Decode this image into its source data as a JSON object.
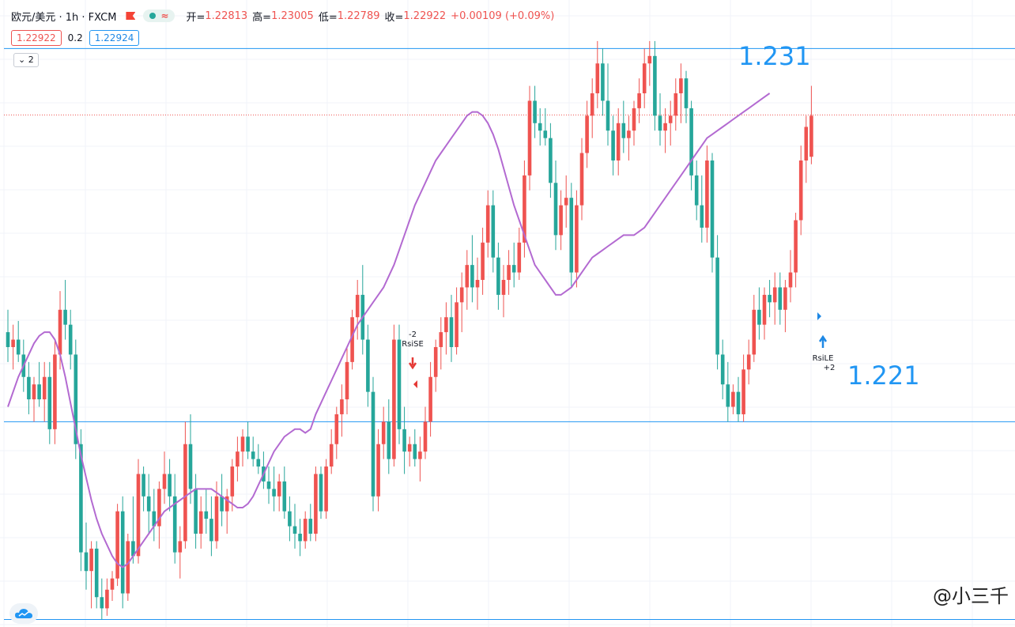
{
  "header": {
    "symbol": "欧元/美元 · 1h · FXCM",
    "open_label": "开=",
    "open": "1.22813",
    "high_label": "高=",
    "high": "1.23005",
    "low_label": "低=",
    "low": "1.22789",
    "close_label": "收=",
    "close": "1.22922",
    "change": "+0.00109 (+0.09%)"
  },
  "prices": {
    "bid": "1.22922",
    "spread": "0.2",
    "ask": "1.22924"
  },
  "collapse_label": "2",
  "levels": {
    "upper": "1.231",
    "lower": "1.221"
  },
  "signals": {
    "short": {
      "count": "-2",
      "name": "RsiSE"
    },
    "long": {
      "count": "+2",
      "name": "RsiLE"
    }
  },
  "watermark": "@小三千",
  "colors": {
    "up": "#ef5350",
    "down": "#26a69a",
    "ma": "#b36ad1",
    "level": "#2196f3"
  },
  "icons": {
    "logo": "tradingview-cloud-icon",
    "flag": "flag-icon",
    "arrow_up": "arrow-up-icon",
    "arrow_down": "arrow-down-icon"
  },
  "chart_data": {
    "type": "candlestick",
    "title": "欧元/美元 · 1h · FXCM",
    "ylim": [
      1.2155,
      1.2323
    ],
    "horizontal_lines": [
      1.231,
      1.221,
      1.2157
    ],
    "last_price_line": 1.22922,
    "series": [
      {
        "name": "OHLC",
        "ohlc": [
          [
            1.2234,
            1.224,
            1.2226,
            1.223
          ],
          [
            1.223,
            1.2236,
            1.2224,
            1.2232
          ],
          [
            1.2232,
            1.2237,
            1.2226,
            1.2228
          ],
          [
            1.2228,
            1.2232,
            1.2218,
            1.2222
          ],
          [
            1.2222,
            1.2226,
            1.2212,
            1.2216
          ],
          [
            1.2216,
            1.2222,
            1.221,
            1.222
          ],
          [
            1.222,
            1.2226,
            1.2214,
            1.2216
          ],
          [
            1.2216,
            1.2226,
            1.221,
            1.2222
          ],
          [
            1.2222,
            1.2226,
            1.2204,
            1.2208
          ],
          [
            1.2208,
            1.2232,
            1.2204,
            1.2228
          ],
          [
            1.2228,
            1.2245,
            1.2224,
            1.224
          ],
          [
            1.224,
            1.2248,
            1.2232,
            1.2236
          ],
          [
            1.2236,
            1.224,
            1.2224,
            1.2228
          ],
          [
            1.2228,
            1.2232,
            1.22,
            1.2204
          ],
          [
            1.2204,
            1.2208,
            1.217,
            1.2175
          ],
          [
            1.2175,
            1.2183,
            1.2165,
            1.217
          ],
          [
            1.217,
            1.2178,
            1.216,
            1.2176
          ],
          [
            1.2176,
            1.2178,
            1.216,
            1.2163
          ],
          [
            1.2163,
            1.2168,
            1.2157,
            1.216
          ],
          [
            1.216,
            1.2168,
            1.2158,
            1.2165
          ],
          [
            1.2165,
            1.217,
            1.2162,
            1.2168
          ],
          [
            1.2168,
            1.2188,
            1.2166,
            1.2186
          ],
          [
            1.2186,
            1.219,
            1.216,
            1.2164
          ],
          [
            1.2164,
            1.218,
            1.2162,
            1.2178
          ],
          [
            1.2178,
            1.219,
            1.2172,
            1.2174
          ],
          [
            1.2174,
            1.22,
            1.2172,
            1.2196
          ],
          [
            1.2196,
            1.2198,
            1.2186,
            1.219
          ],
          [
            1.219,
            1.2196,
            1.218,
            1.2186
          ],
          [
            1.2186,
            1.2192,
            1.2178,
            1.2182
          ],
          [
            1.2182,
            1.2194,
            1.2176,
            1.2192
          ],
          [
            1.2192,
            1.2202,
            1.2188,
            1.2196
          ],
          [
            1.2196,
            1.22,
            1.2186,
            1.219
          ],
          [
            1.219,
            1.2196,
            1.2172,
            1.2175
          ],
          [
            1.2175,
            1.2182,
            1.2168,
            1.2178
          ],
          [
            1.2178,
            1.221,
            1.2176,
            1.2204
          ],
          [
            1.2204,
            1.2212,
            1.2188,
            1.2192
          ],
          [
            1.2192,
            1.2196,
            1.2176,
            1.218
          ],
          [
            1.218,
            1.219,
            1.2176,
            1.2186
          ],
          [
            1.2186,
            1.2192,
            1.218,
            1.2184
          ],
          [
            1.2184,
            1.219,
            1.2174,
            1.2178
          ],
          [
            1.2178,
            1.2194,
            1.2176,
            1.219
          ],
          [
            1.219,
            1.2196,
            1.2182,
            1.2186
          ],
          [
            1.2186,
            1.2192,
            1.218,
            1.219
          ],
          [
            1.219,
            1.22,
            1.2186,
            1.2198
          ],
          [
            1.2198,
            1.2206,
            1.2194,
            1.2202
          ],
          [
            1.2202,
            1.2208,
            1.2198,
            1.2206
          ],
          [
            1.2206,
            1.221,
            1.22,
            1.2202
          ],
          [
            1.2202,
            1.2206,
            1.2198,
            1.22
          ],
          [
            1.22,
            1.2204,
            1.2196,
            1.2198
          ],
          [
            1.2198,
            1.2202,
            1.2192,
            1.2194
          ],
          [
            1.2194,
            1.2198,
            1.2188,
            1.2192
          ],
          [
            1.2192,
            1.2198,
            1.2186,
            1.219
          ],
          [
            1.219,
            1.2196,
            1.2186,
            1.2194
          ],
          [
            1.2194,
            1.2198,
            1.2184,
            1.2186
          ],
          [
            1.2186,
            1.219,
            1.2178,
            1.2182
          ],
          [
            1.2182,
            1.2188,
            1.2176,
            1.218
          ],
          [
            1.218,
            1.2184,
            1.2174,
            1.2178
          ],
          [
            1.2178,
            1.2186,
            1.2176,
            1.2184
          ],
          [
            1.2184,
            1.2188,
            1.2178,
            1.218
          ],
          [
            1.218,
            1.2198,
            1.2178,
            1.2196
          ],
          [
            1.2196,
            1.2198,
            1.2184,
            1.2186
          ],
          [
            1.2186,
            1.22,
            1.2184,
            1.2198
          ],
          [
            1.2198,
            1.2208,
            1.2196,
            1.2204
          ],
          [
            1.2204,
            1.2214,
            1.22,
            1.2212
          ],
          [
            1.2212,
            1.222,
            1.2206,
            1.2216
          ],
          [
            1.2216,
            1.223,
            1.2212,
            1.2226
          ],
          [
            1.2226,
            1.224,
            1.2224,
            1.2238
          ],
          [
            1.2238,
            1.2248,
            1.2232,
            1.2244
          ],
          [
            1.2244,
            1.2252,
            1.2228,
            1.2232
          ],
          [
            1.2232,
            1.2236,
            1.2214,
            1.2218
          ],
          [
            1.2218,
            1.2222,
            1.2186,
            1.219
          ],
          [
            1.219,
            1.2208,
            1.2186,
            1.2204
          ],
          [
            1.2204,
            1.2214,
            1.22,
            1.221
          ],
          [
            1.221,
            1.2216,
            1.2196,
            1.22
          ],
          [
            1.22,
            1.2236,
            1.2198,
            1.2232
          ],
          [
            1.2232,
            1.2236,
            1.2204,
            1.2208
          ],
          [
            1.2208,
            1.2214,
            1.2196,
            1.2202
          ],
          [
            1.2202,
            1.2206,
            1.2198,
            1.2204
          ],
          [
            1.2204,
            1.2208,
            1.2198,
            1.22
          ],
          [
            1.22,
            1.2206,
            1.2194,
            1.2202
          ],
          [
            1.2202,
            1.2214,
            1.22,
            1.221
          ],
          [
            1.221,
            1.2226,
            1.2206,
            1.2222
          ],
          [
            1.2222,
            1.2232,
            1.2218,
            1.223
          ],
          [
            1.223,
            1.2238,
            1.2224,
            1.2234
          ],
          [
            1.2234,
            1.2242,
            1.2228,
            1.2238
          ],
          [
            1.2238,
            1.2244,
            1.2226,
            1.223
          ],
          [
            1.223,
            1.2246,
            1.2228,
            1.2242
          ],
          [
            1.2242,
            1.225,
            1.2234,
            1.2246
          ],
          [
            1.2246,
            1.2256,
            1.224,
            1.2252
          ],
          [
            1.2252,
            1.226,
            1.2242,
            1.2246
          ],
          [
            1.2246,
            1.2254,
            1.224,
            1.2248
          ],
          [
            1.2248,
            1.2262,
            1.2244,
            1.2258
          ],
          [
            1.2258,
            1.2272,
            1.2254,
            1.2268
          ],
          [
            1.2268,
            1.2272,
            1.225,
            1.2254
          ],
          [
            1.2254,
            1.2258,
            1.224,
            1.2244
          ],
          [
            1.2244,
            1.2252,
            1.2238,
            1.2248
          ],
          [
            1.2248,
            1.2256,
            1.2244,
            1.2252
          ],
          [
            1.2252,
            1.2258,
            1.2246,
            1.225
          ],
          [
            1.225,
            1.2262,
            1.2248,
            1.2258
          ],
          [
            1.2258,
            1.228,
            1.2254,
            1.2276
          ],
          [
            1.2276,
            1.23,
            1.2272,
            1.2296
          ],
          [
            1.2296,
            1.23,
            1.2286,
            1.229
          ],
          [
            1.229,
            1.2294,
            1.2284,
            1.2288
          ],
          [
            1.2288,
            1.2294,
            1.2284,
            1.2286
          ],
          [
            1.2286,
            1.229,
            1.227,
            1.2274
          ],
          [
            1.2274,
            1.228,
            1.2256,
            1.226
          ],
          [
            1.226,
            1.2272,
            1.2256,
            1.2268
          ],
          [
            1.2268,
            1.2276,
            1.2262,
            1.227
          ],
          [
            1.227,
            1.2274,
            1.2246,
            1.225
          ],
          [
            1.225,
            1.2272,
            1.2246,
            1.2268
          ],
          [
            1.2268,
            1.2286,
            1.2264,
            1.2282
          ],
          [
            1.2282,
            1.2296,
            1.2278,
            1.2292
          ],
          [
            1.2292,
            1.2302,
            1.2286,
            1.2298
          ],
          [
            1.2298,
            1.2312,
            1.2294,
            1.2306
          ],
          [
            1.2306,
            1.231,
            1.2292,
            1.2296
          ],
          [
            1.2296,
            1.2306,
            1.2284,
            1.2288
          ],
          [
            1.2288,
            1.2292,
            1.2276,
            1.228
          ],
          [
            1.228,
            1.2294,
            1.2276,
            1.229
          ],
          [
            1.229,
            1.2296,
            1.2282,
            1.2286
          ],
          [
            1.2286,
            1.2292,
            1.228,
            1.2288
          ],
          [
            1.2288,
            1.2296,
            1.2284,
            1.2294
          ],
          [
            1.2294,
            1.2302,
            1.229,
            1.2298
          ],
          [
            1.2298,
            1.231,
            1.2294,
            1.2306
          ],
          [
            1.2306,
            1.2312,
            1.23,
            1.2308
          ],
          [
            1.2308,
            1.2312,
            1.2288,
            1.2292
          ],
          [
            1.2292,
            1.2298,
            1.2284,
            1.2288
          ],
          [
            1.2288,
            1.2294,
            1.2282,
            1.229
          ],
          [
            1.229,
            1.2296,
            1.2284,
            1.2292
          ],
          [
            1.2292,
            1.2302,
            1.2288,
            1.2298
          ],
          [
            1.2298,
            1.2306,
            1.229,
            1.2302
          ],
          [
            1.2302,
            1.2304,
            1.229,
            1.2294
          ],
          [
            1.2294,
            1.2296,
            1.2272,
            1.2276
          ],
          [
            1.2276,
            1.228,
            1.2264,
            1.2268
          ],
          [
            1.2268,
            1.2276,
            1.2258,
            1.2262
          ],
          [
            1.2262,
            1.2284,
            1.2258,
            1.228
          ],
          [
            1.228,
            1.2282,
            1.225,
            1.2254
          ],
          [
            1.2254,
            1.226,
            1.2224,
            1.2228
          ],
          [
            1.2228,
            1.2232,
            1.2216,
            1.222
          ],
          [
            1.222,
            1.2226,
            1.221,
            1.2214
          ],
          [
            1.2214,
            1.222,
            1.2212,
            1.2218
          ],
          [
            1.2218,
            1.2222,
            1.221,
            1.2212
          ],
          [
            1.2212,
            1.2228,
            1.221,
            1.2224
          ],
          [
            1.2224,
            1.2232,
            1.222,
            1.2228
          ],
          [
            1.2228,
            1.2244,
            1.2226,
            1.224
          ],
          [
            1.224,
            1.2246,
            1.2232,
            1.2236
          ],
          [
            1.2236,
            1.2246,
            1.2232,
            1.2244
          ],
          [
            1.2244,
            1.2248,
            1.2238,
            1.2242
          ],
          [
            1.2242,
            1.225,
            1.2236,
            1.2246
          ],
          [
            1.2246,
            1.225,
            1.2236,
            1.224
          ],
          [
            1.224,
            1.2248,
            1.2234,
            1.2246
          ],
          [
            1.2246,
            1.2256,
            1.2242,
            1.225
          ],
          [
            1.225,
            1.2266,
            1.2246,
            1.2264
          ],
          [
            1.2264,
            1.2284,
            1.226,
            1.228
          ],
          [
            1.228,
            1.2292,
            1.2274,
            1.2289
          ],
          [
            1.2281,
            1.23,
            1.2279,
            1.2292
          ]
        ]
      },
      {
        "name": "MA",
        "values": [
          1.2214,
          1.2218,
          1.2222,
          1.2225,
          1.2228,
          1.2231,
          1.2233,
          1.2234,
          1.2234,
          1.2232,
          1.2228,
          1.2222,
          1.2215,
          1.2208,
          1.2201,
          1.2195,
          1.2189,
          1.2184,
          1.218,
          1.2177,
          1.2174,
          1.2172,
          1.2171,
          1.2172,
          1.2174,
          1.2176,
          1.2178,
          1.218,
          1.2182,
          1.2184,
          1.2186,
          1.2187,
          1.2188,
          1.2189,
          1.219,
          1.2191,
          1.2192,
          1.2192,
          1.2192,
          1.2192,
          1.2191,
          1.219,
          1.2189,
          1.2188,
          1.2187,
          1.2187,
          1.2188,
          1.219,
          1.2193,
          1.2196,
          1.2199,
          1.2202,
          1.2204,
          1.2206,
          1.2207,
          1.2208,
          1.2208,
          1.2207,
          1.2208,
          1.2212,
          1.2215,
          1.2218,
          1.2221,
          1.2224,
          1.2227,
          1.223,
          1.2233,
          1.2236,
          1.2238,
          1.224,
          1.2242,
          1.2244,
          1.2246,
          1.2249,
          1.2252,
          1.2256,
          1.226,
          1.2264,
          1.2268,
          1.2271,
          1.2274,
          1.2277,
          1.228,
          1.2282,
          1.2284,
          1.2286,
          1.2288,
          1.229,
          1.2292,
          1.2293,
          1.2293,
          1.2292,
          1.229,
          1.2287,
          1.2283,
          1.2278,
          1.2273,
          1.2268,
          1.2264,
          1.226,
          1.2256,
          1.2252,
          1.225,
          1.2248,
          1.2246,
          1.2244,
          1.2244,
          1.2245,
          1.2246,
          1.2248,
          1.225,
          1.2252,
          1.2254,
          1.2255,
          1.2256,
          1.2257,
          1.2258,
          1.2259,
          1.226,
          1.226,
          1.226,
          1.2261,
          1.2262,
          1.2264,
          1.2266,
          1.2268,
          1.227,
          1.2272,
          1.2274,
          1.2276,
          1.2278,
          1.228,
          1.2282,
          1.2284,
          1.2286,
          1.2287,
          1.2288,
          1.2289,
          1.229,
          1.2291,
          1.2292,
          1.2293,
          1.2294,
          1.2295,
          1.2296,
          1.2297,
          1.2298
        ]
      }
    ]
  }
}
